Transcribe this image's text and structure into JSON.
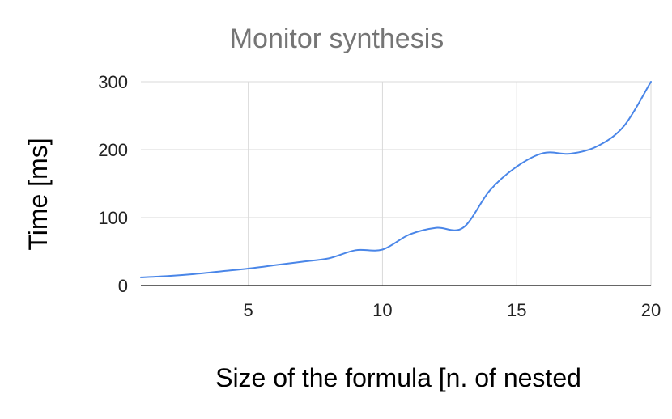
{
  "chart_data": {
    "type": "line",
    "title": "Monitor synthesis",
    "xlabel": "Size of the formula [n. of nested",
    "ylabel": "Time [ms]",
    "xlim": [
      1,
      20
    ],
    "ylim": [
      0,
      300
    ],
    "x_ticks": [
      5,
      10,
      15,
      20
    ],
    "y_ticks": [
      0,
      100,
      200,
      300
    ],
    "grid": true,
    "legend": "none",
    "series": [
      {
        "color": "#4a86e8",
        "x": [
          1,
          2,
          3,
          4,
          5,
          6,
          7,
          8,
          9,
          10,
          11,
          12,
          13,
          14,
          15,
          16,
          17,
          18,
          19,
          20
        ],
        "y": [
          12,
          14,
          17,
          21,
          25,
          30,
          35,
          40,
          52,
          53,
          75,
          85,
          85,
          140,
          175,
          195,
          194,
          205,
          235,
          300
        ]
      }
    ]
  }
}
